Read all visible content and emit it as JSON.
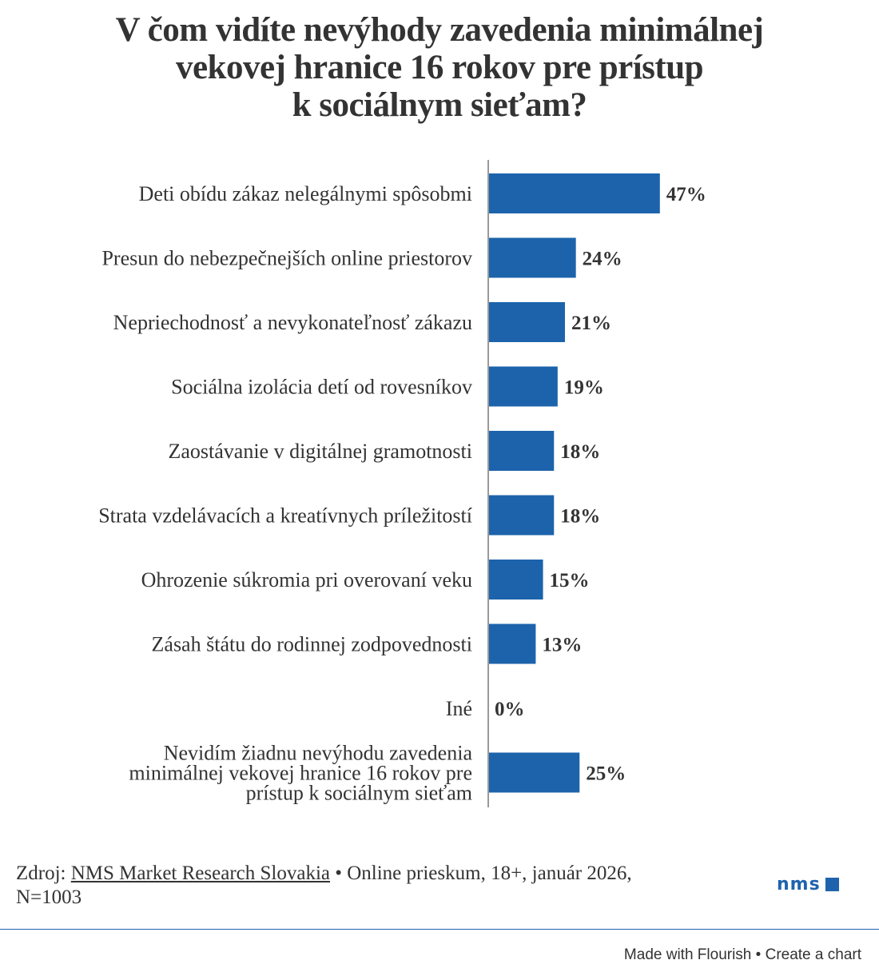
{
  "title_lines": [
    "V čom vidíte nevýhody zavedenia minimálnej",
    "vekovej hranice 16 rokov pre prístup",
    "k sociálnym sieťam?"
  ],
  "chart_data": {
    "type": "bar",
    "orientation": "horizontal",
    "title": "V čom vidíte nevýhody zavedenia minimálnej vekovej hranice 16 rokov pre prístup k sociálnym sieťam?",
    "categories": [
      [
        "Deti obídu zákaz nelegálnymi spôsobmi"
      ],
      [
        "Presun do nebezpečnejších online priestorov"
      ],
      [
        "Nepriechodnosť a nevykonateľnosť zákazu"
      ],
      [
        "Sociálna izolácia detí od rovesníkov"
      ],
      [
        "Zaostávanie v digitálnej gramotnosti"
      ],
      [
        "Strata vzdelávacích a kreatívnych príležitostí"
      ],
      [
        "Ohrozenie súkromia pri overovaní veku"
      ],
      [
        "Zásah štátu do rodinnej zodpovednosti"
      ],
      [
        "Iné"
      ],
      [
        "Nevidím žiadnu nevýhodu zavedenia",
        "minimálnej vekovej hranice 16 rokov pre",
        "prístup k sociálnym sieťam"
      ]
    ],
    "values": [
      47,
      24,
      21,
      19,
      18,
      18,
      15,
      13,
      0,
      25
    ],
    "value_labels": [
      "47%",
      "24%",
      "21%",
      "19%",
      "18%",
      "18%",
      "15%",
      "13%",
      "0%",
      "25%"
    ],
    "unit": "%",
    "xlim": [
      0,
      100
    ],
    "bar_color": "#1c63ab",
    "grid": false,
    "legend": "none"
  },
  "footer": {
    "source_prefix": "Zdroj: ",
    "source_link": "NMS Market Research Slovakia",
    "source_rest": " • Online prieskum, 18+, január 2026,",
    "source_line2": "N=1003"
  },
  "logo": {
    "text": "nms",
    "color": "#1f63ad"
  },
  "credits": {
    "made_with": "Made with Flourish",
    "separator": " • ",
    "create": "Create a chart"
  }
}
